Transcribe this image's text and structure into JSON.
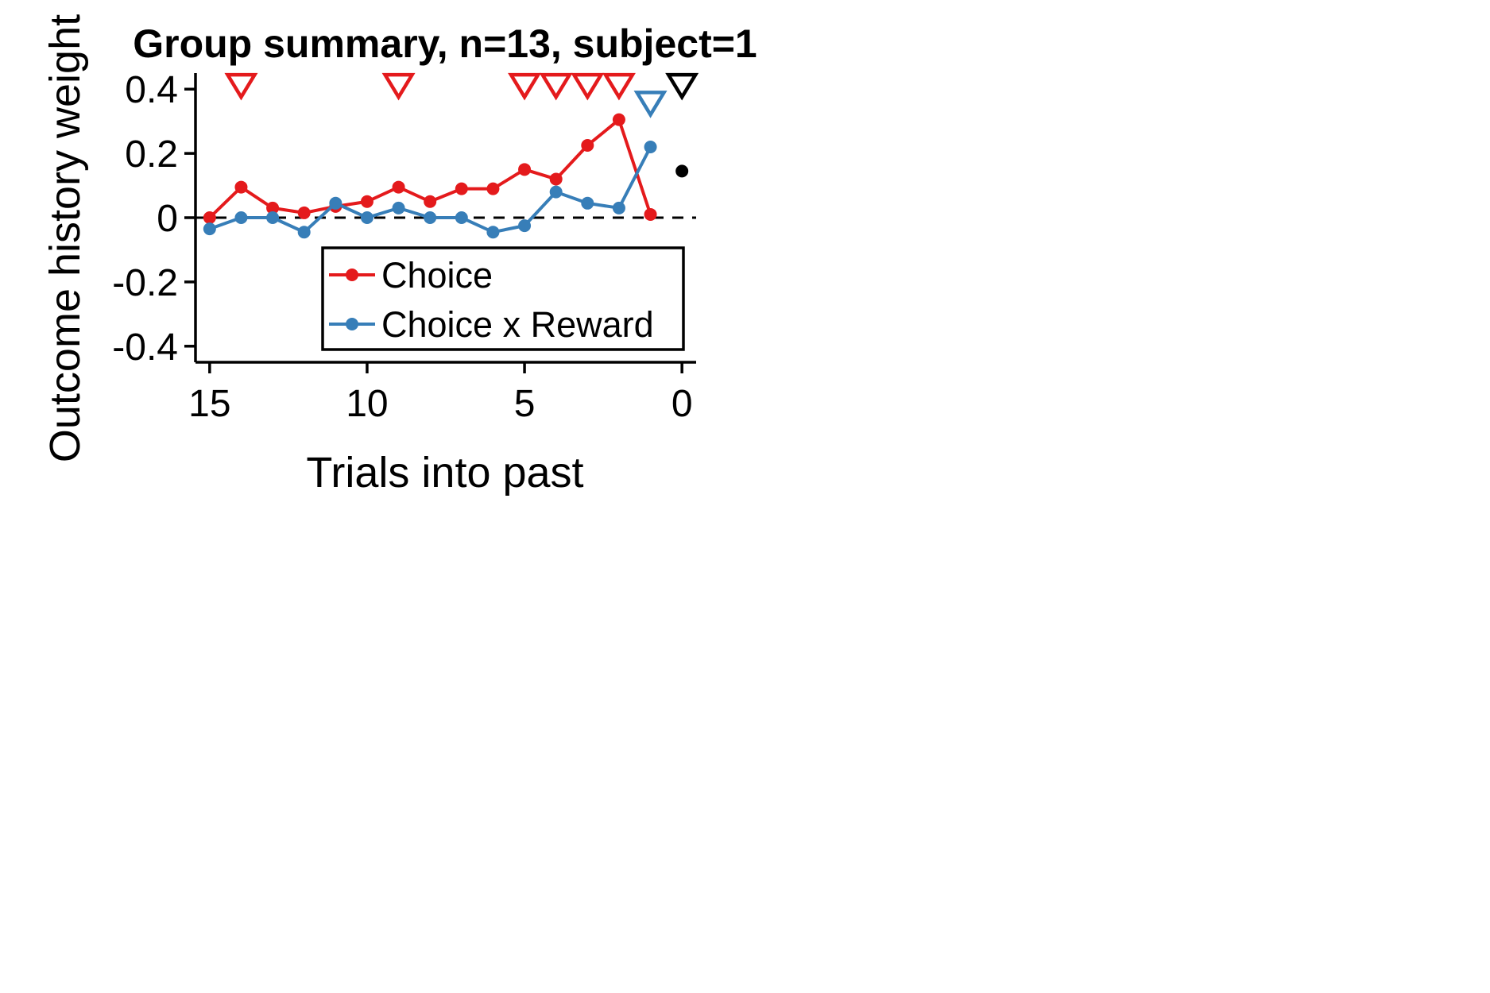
{
  "chart_data": {
    "type": "line",
    "title": "Group summary, n=13, subject=1",
    "xlabel": "Trials into past",
    "ylabel": "Outcome history weight",
    "xlim": [
      15.45,
      -0.45
    ],
    "ylim": [
      -0.45,
      0.45
    ],
    "x_ticks": [
      {
        "value": 15,
        "label": "15"
      },
      {
        "value": 10,
        "label": "10"
      },
      {
        "value": 5,
        "label": "5"
      },
      {
        "value": 0,
        "label": "0"
      }
    ],
    "y_ticks": [
      {
        "value": 0.4,
        "label": "0.4"
      },
      {
        "value": 0.2,
        "label": "0.2"
      },
      {
        "value": 0,
        "label": "0"
      },
      {
        "value": -0.2,
        "label": "-0.2"
      },
      {
        "value": -0.4,
        "label": "-0.4"
      }
    ],
    "reference_line": {
      "y": 0,
      "style": "dashed"
    },
    "legend": {
      "placement": "lower-right"
    },
    "series": [
      {
        "name": "Choice",
        "color": "#e41a1c",
        "x": [
          15,
          14,
          13,
          12,
          11,
          10,
          9,
          8,
          7,
          6,
          5,
          4,
          3,
          2,
          1
        ],
        "values": [
          0.0,
          0.095,
          0.03,
          0.015,
          0.035,
          0.05,
          0.095,
          0.05,
          0.09,
          0.09,
          0.15,
          0.12,
          0.225,
          0.305,
          0.01
        ],
        "significance_markers_x": [
          14,
          9,
          5,
          4,
          3,
          2
        ],
        "marker_y": 0.41
      },
      {
        "name": "Choice x Reward",
        "color": "#377eb8",
        "x": [
          15,
          14,
          13,
          12,
          11,
          10,
          9,
          8,
          7,
          6,
          5,
          4,
          3,
          2,
          1
        ],
        "values": [
          -0.035,
          0.0,
          0.0,
          -0.045,
          0.045,
          0.0,
          0.03,
          0.0,
          0.0,
          -0.045,
          -0.025,
          0.08,
          0.045,
          0.03,
          0.22
        ],
        "significance_markers_x": [
          1
        ],
        "marker_y": 0.355
      }
    ],
    "bias_point": {
      "x": 0,
      "y": 0.145,
      "color": "#000000",
      "significance_marker_y": 0.41
    }
  }
}
